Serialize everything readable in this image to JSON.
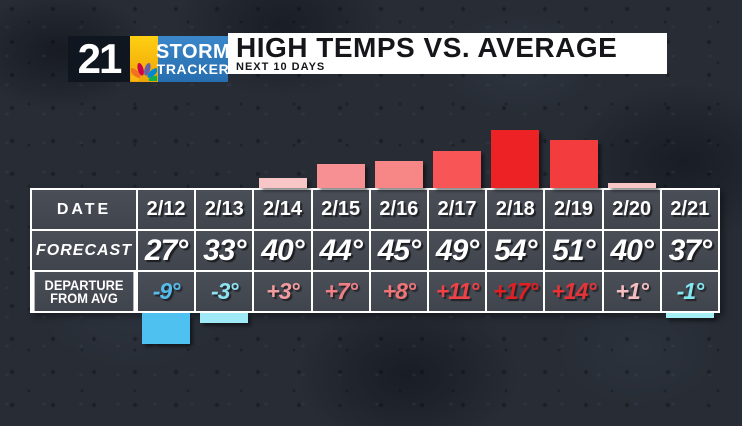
{
  "header": {
    "station_number": "21",
    "brand_line1": "STORM",
    "brand_line2": "TRACKER",
    "title": "HIGH TEMPS VS. AVERAGE",
    "subtitle": "NEXT 10 DAYS"
  },
  "table": {
    "label_date": "DATE",
    "label_forecast": "FORECAST",
    "label_departure_line1": "DEPARTURE",
    "label_departure_line2": "FROM AVG"
  },
  "days": [
    {
      "date": "2/12",
      "forecast": "27°",
      "departure": "-9°",
      "value": -9,
      "bar_color": "#4fc1f0",
      "text_color": "#55bdec"
    },
    {
      "date": "2/13",
      "forecast": "33°",
      "departure": "-3°",
      "value": -3,
      "bar_color": "#a0e9f7",
      "text_color": "#8ce2f1"
    },
    {
      "date": "2/14",
      "forecast": "40°",
      "departure": "+3°",
      "value": 3,
      "bar_color": "#f8c6c7",
      "text_color": "#f29b9e"
    },
    {
      "date": "2/15",
      "forecast": "44°",
      "departure": "+7°",
      "value": 7,
      "bar_color": "#f79093",
      "text_color": "#f07f85"
    },
    {
      "date": "2/16",
      "forecast": "45°",
      "departure": "+8°",
      "value": 8,
      "bar_color": "#f78687",
      "text_color": "#f07578"
    },
    {
      "date": "2/17",
      "forecast": "49°",
      "departure": "+11°",
      "value": 11,
      "bar_color": "#f75556",
      "text_color": "#ef4146"
    },
    {
      "date": "2/18",
      "forecast": "54°",
      "departure": "+17°",
      "value": 17,
      "bar_color": "#ed2224",
      "text_color": "#e01f24"
    },
    {
      "date": "2/19",
      "forecast": "51°",
      "departure": "+14°",
      "value": 14,
      "bar_color": "#f23c3d",
      "text_color": "#e73338"
    },
    {
      "date": "2/20",
      "forecast": "40°",
      "departure": "+1°",
      "value": 1,
      "bar_color": "#f8c6c7",
      "text_color": "#f5bdc0"
    },
    {
      "date": "2/21",
      "forecast": "37°",
      "departure": "-1°",
      "value": -1,
      "bar_color": "#a5eff4",
      "text_color": "#82e7f0"
    }
  ],
  "chart_data": {
    "type": "bar",
    "title": "HIGH TEMPS VS. AVERAGE",
    "subtitle": "NEXT 10 DAYS",
    "categories": [
      "2/12",
      "2/13",
      "2/14",
      "2/15",
      "2/16",
      "2/17",
      "2/18",
      "2/19",
      "2/20",
      "2/21"
    ],
    "series": [
      {
        "name": "FORECAST",
        "unit": "°F",
        "values": [
          27,
          33,
          40,
          44,
          45,
          49,
          54,
          51,
          40,
          37
        ]
      },
      {
        "name": "DEPARTURE FROM AVG",
        "unit": "°F",
        "values": [
          -9,
          -3,
          3,
          7,
          8,
          11,
          17,
          14,
          1,
          -1
        ]
      }
    ],
    "bar_series": "DEPARTURE FROM AVG",
    "layout_hint": "positive departures drawn as warm red/pink bars above the table; negative departures as cool blue/cyan bars below the table; no axes, no legend, no gridlines",
    "legend": false,
    "axes": false
  },
  "colors": {
    "background": "#272c35",
    "logo_dark": "#10161f",
    "logo_yellow": "#f7bd0c",
    "logo_blue": "#2f7bc0",
    "banner_bg": "#ffffff",
    "banner_text": "#15151a",
    "cell_bg": "#454952",
    "grid_border": "#ffffff",
    "peacock": [
      "#FCB711",
      "#F37021",
      "#CC004C",
      "#6460AA",
      "#0089D0",
      "#0DB14B"
    ]
  }
}
